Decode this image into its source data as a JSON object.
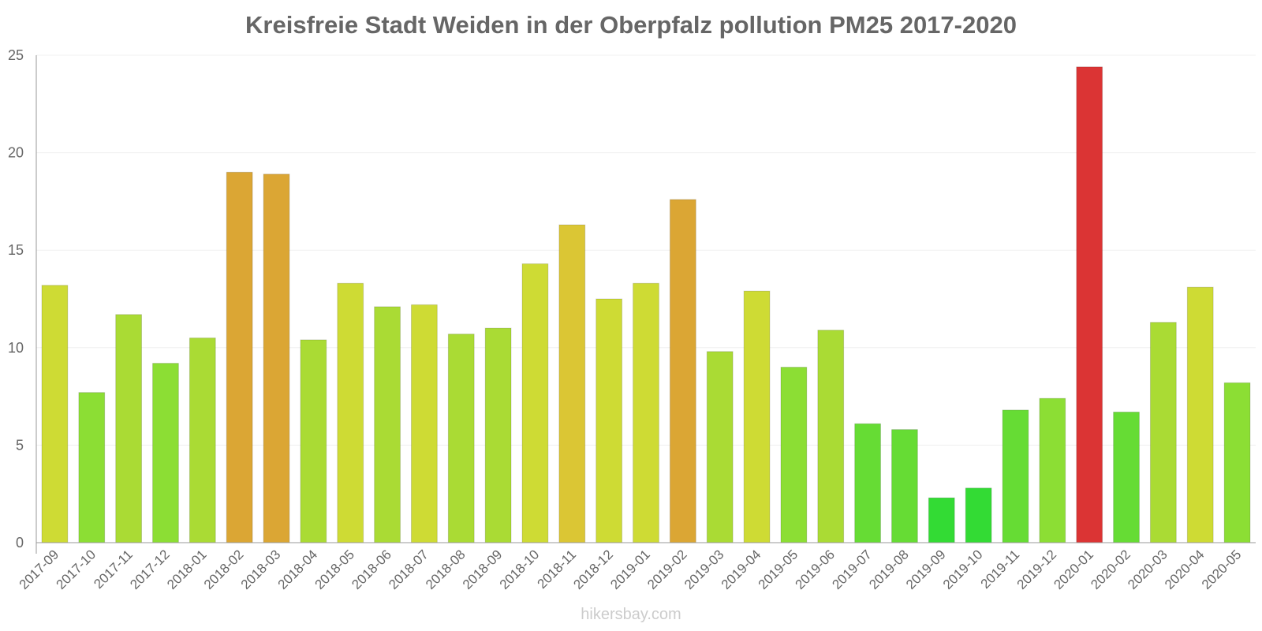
{
  "chart_data": {
    "type": "bar",
    "title": "Kreisfreie Stadt Weiden in der Oberpfalz pollution PM25 2017-2020",
    "xlabel": "",
    "ylabel": "",
    "ylim": [
      0,
      25
    ],
    "yticks": [
      "0",
      "5",
      "10",
      "15",
      "20",
      "25"
    ],
    "grid": true,
    "categories": [
      "2017-09",
      "2017-10",
      "2017-11",
      "2017-12",
      "2018-01",
      "2018-02",
      "2018-03",
      "2018-04",
      "2018-05",
      "2018-06",
      "2018-07",
      "2018-08",
      "2018-09",
      "2018-10",
      "2018-11",
      "2018-12",
      "2019-01",
      "2019-02",
      "2019-03",
      "2019-04",
      "2019-05",
      "2019-06",
      "2019-07",
      "2019-08",
      "2019-09",
      "2019-10",
      "2019-11",
      "2019-12",
      "2020-01",
      "2020-02",
      "2020-03",
      "2020-04",
      "2020-05"
    ],
    "values": [
      13.2,
      7.7,
      11.7,
      9.2,
      10.5,
      19.0,
      18.9,
      10.4,
      13.3,
      12.1,
      12.2,
      10.7,
      11.0,
      14.3,
      16.3,
      12.5,
      13.3,
      17.6,
      9.8,
      12.9,
      9.0,
      10.9,
      6.1,
      5.8,
      2.3,
      2.8,
      6.8,
      7.4,
      24.4,
      6.7,
      11.3,
      13.1,
      8.2
    ],
    "colors": [
      "#cedb34",
      "#8cde34",
      "#aadb34",
      "#8cde34",
      "#aadb34",
      "#dba634",
      "#dba634",
      "#aadb34",
      "#cedb34",
      "#aadb34",
      "#cedb34",
      "#aadb34",
      "#aadb34",
      "#cedb34",
      "#dbc634",
      "#cedb34",
      "#cedb34",
      "#dba634",
      "#aadb34",
      "#cedb34",
      "#8cde34",
      "#aadb34",
      "#66dc34",
      "#66dc34",
      "#33db34",
      "#33db34",
      "#66dc34",
      "#8cde34",
      "#db3434",
      "#66dc34",
      "#aadb34",
      "#cedb34",
      "#8cde34"
    ]
  },
  "watermark": "hikersbay.com"
}
